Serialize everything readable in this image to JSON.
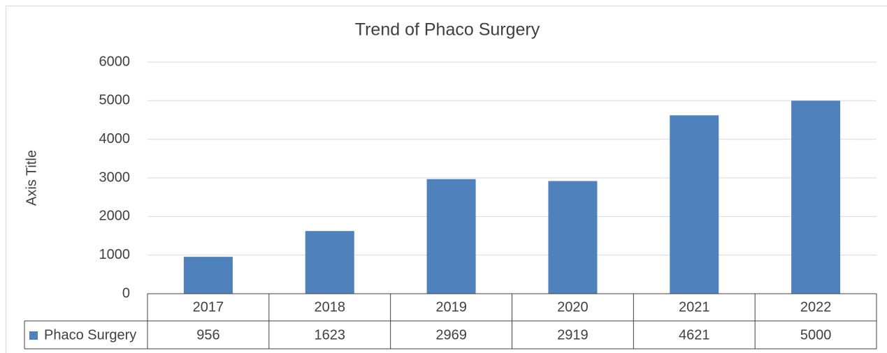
{
  "chart_data": {
    "type": "bar",
    "title": "Trend of Phaco Surgery",
    "y_axis_label": "Axis Title",
    "categories": [
      "2017",
      "2018",
      "2019",
      "2020",
      "2021",
      "2022"
    ],
    "series": [
      {
        "name": "Phaco Surgery",
        "color": "#4f81bd",
        "values": [
          956,
          1623,
          2969,
          2919,
          4621,
          5000
        ]
      }
    ],
    "ylim": [
      0,
      6000
    ],
    "yticks": [
      0,
      1000,
      2000,
      3000,
      4000,
      5000,
      6000
    ],
    "grid": true,
    "data_table": true
  }
}
